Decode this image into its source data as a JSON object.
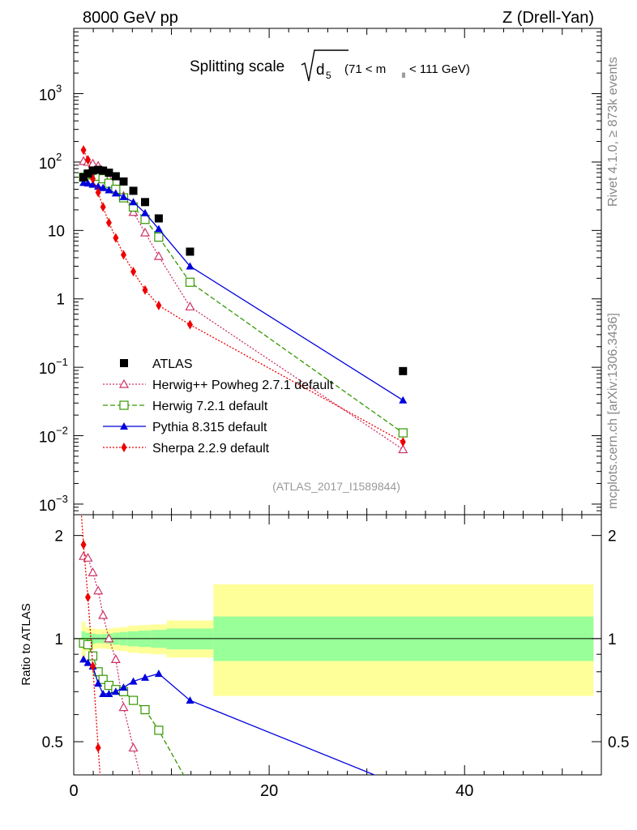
{
  "header": {
    "left": "8000 GeV pp",
    "right": "Z (Drell-Yan)"
  },
  "side": {
    "rivet": "Rivet 4.1.0, ≥ 873k events",
    "mcplots": "mcplots.cern.ch [arXiv:1306.3436]"
  },
  "colors": {
    "atlas": "#000000",
    "herwigpp": "#cc3366",
    "herwig7": "#339900",
    "pythia": "#0000dd",
    "sherpa": "#ee0000",
    "band_inner": "#99ff99",
    "band_outer": "#ffff99"
  },
  "chart_data": {
    "type": "scatter",
    "title_main": "Splitting scale",
    "title_symbol": "d",
    "title_sub": "5",
    "title_range": "(71 < m",
    "title_range_sub": "ll",
    "title_range_end": " < 111 GeV)",
    "analysis_id": "(ATLAS_2017_I1589844)",
    "ylabel_ratio": "Ratio to ATLAS",
    "xlim": [
      0,
      54
    ],
    "ylim_main": [
      0.0007,
      9000
    ],
    "ylim_ratio": [
      0.4,
      2.3
    ],
    "x_ticks": [
      "0",
      "20",
      "40"
    ],
    "x_tick_values": [
      0,
      20,
      40
    ],
    "y_tick_labels_main": [
      {
        "value": 1000,
        "base": "10",
        "exp": "3"
      },
      {
        "value": 100,
        "base": "10",
        "exp": "2"
      },
      {
        "value": 10,
        "base": "10",
        "exp": ""
      },
      {
        "value": 1,
        "base": "1",
        "exp": ""
      },
      {
        "value": 0.1,
        "base": "10",
        "exp": "−1"
      },
      {
        "value": 0.01,
        "base": "10",
        "exp": "−2"
      },
      {
        "value": 0.001,
        "base": "10",
        "exp": "−3"
      }
    ],
    "y_tick_labels_ratio": [
      {
        "value": 2,
        "label": "2"
      },
      {
        "value": 1,
        "label": "1"
      },
      {
        "value": 0.5,
        "label": "0.5"
      }
    ],
    "atlas": {
      "name": "ATLAS",
      "x": [
        1.0,
        1.45,
        1.95,
        2.5,
        3.0,
        3.6,
        4.3,
        5.1,
        6.1,
        7.3,
        8.7,
        11.9,
        33.7
      ],
      "y": [
        60,
        68,
        75,
        77,
        75,
        70,
        62,
        52,
        38,
        26,
        15,
        4.9,
        0.088
      ]
    },
    "bands": {
      "edges": [
        0.8,
        1.2,
        1.7,
        2.2,
        2.8,
        3.4,
        4.0,
        4.7,
        5.5,
        6.6,
        7.9,
        9.5,
        14.3,
        53.2
      ],
      "inner_lo": [
        0.95,
        0.96,
        0.965,
        0.97,
        0.97,
        0.965,
        0.96,
        0.955,
        0.95,
        0.945,
        0.94,
        0.93,
        0.86
      ],
      "inner_hi": [
        1.05,
        1.04,
        1.035,
        1.03,
        1.03,
        1.035,
        1.04,
        1.045,
        1.05,
        1.055,
        1.06,
        1.07,
        1.16
      ],
      "outer_lo": [
        0.88,
        0.92,
        0.93,
        0.935,
        0.935,
        0.93,
        0.925,
        0.92,
        0.91,
        0.905,
        0.9,
        0.88,
        0.68
      ],
      "outer_hi": [
        1.12,
        1.08,
        1.07,
        1.065,
        1.065,
        1.07,
        1.075,
        1.08,
        1.09,
        1.095,
        1.1,
        1.13,
        1.44
      ]
    },
    "series": [
      {
        "key": "herwigpp",
        "name": "Herwig++ Powheg 2.7.1 default",
        "marker": "triangle-open",
        "dash": "2,2",
        "x": [
          1.0,
          1.45,
          1.95,
          2.5,
          3.0,
          3.6,
          4.3,
          5.1,
          6.1,
          7.3,
          8.7,
          11.9,
          33.7
        ],
        "y": [
          103,
          100,
          95,
          88,
          74,
          57,
          40,
          32,
          18.5,
          9.3,
          4.2,
          0.77,
          0.0063
        ],
        "ratio_x": [
          1.0,
          1.45,
          1.95,
          2.5,
          3.0,
          3.6,
          4.3,
          5.1,
          6.1,
          7.3,
          8.7
        ],
        "ratio_y": [
          1.74,
          1.72,
          1.56,
          1.38,
          1.17,
          1.0,
          0.87,
          0.63,
          0.48,
          0.35,
          0.27
        ]
      },
      {
        "key": "herwig7",
        "name": "Herwig 7.2.1 default",
        "marker": "square-open",
        "dash": "6,3",
        "x": [
          1.0,
          1.45,
          1.95,
          2.5,
          3.0,
          3.6,
          4.3,
          5.1,
          6.1,
          7.3,
          8.7,
          11.9,
          33.7
        ],
        "y": [
          60,
          65,
          67,
          62,
          57,
          49,
          40,
          30,
          22,
          14.5,
          8.0,
          1.75,
          0.011
        ],
        "ratio_x": [
          1.0,
          1.45,
          1.95,
          2.5,
          3.0,
          3.6,
          4.3,
          5.1,
          6.1,
          7.3,
          8.7,
          11.9
        ],
        "ratio_y": [
          0.97,
          0.96,
          0.89,
          0.8,
          0.76,
          0.73,
          0.71,
          0.7,
          0.66,
          0.62,
          0.54,
          0.37
        ]
      },
      {
        "key": "pythia",
        "name": "Pythia 8.315 default",
        "marker": "triangle-filled",
        "dash": "",
        "x": [
          1.0,
          1.45,
          1.95,
          2.5,
          3.0,
          3.6,
          4.3,
          5.1,
          6.1,
          7.3,
          8.7,
          11.9,
          33.7
        ],
        "y": [
          50,
          49,
          47,
          44,
          42,
          39,
          35,
          31,
          26,
          18,
          10.5,
          3.0,
          0.033
        ],
        "ratio_x": [
          1.0,
          1.45,
          1.95,
          2.5,
          3.0,
          3.6,
          4.3,
          5.1,
          6.1,
          7.3,
          8.7,
          11.9,
          33.7
        ],
        "ratio_y": [
          0.87,
          0.85,
          0.83,
          0.74,
          0.69,
          0.69,
          0.7,
          0.72,
          0.75,
          0.77,
          0.79,
          0.66,
          0.37
        ]
      },
      {
        "key": "sherpa",
        "name": "Sherpa 2.2.9 default",
        "marker": "diamond-filled",
        "dash": "2,2",
        "x": [
          1.0,
          1.45,
          1.95,
          2.5,
          3.0,
          3.6,
          4.3,
          5.1,
          6.1,
          7.3,
          8.7,
          11.9,
          33.7
        ],
        "y": [
          150,
          108,
          57,
          36,
          22,
          13,
          7.8,
          4.4,
          2.5,
          1.35,
          0.8,
          0.42,
          0.0081
        ],
        "ratio_x": [
          0.65,
          1.0,
          1.45,
          1.95,
          2.5,
          3.0
        ],
        "ratio_y": [
          2.6,
          1.88,
          1.32,
          0.83,
          0.48,
          0.3
        ]
      }
    ]
  }
}
